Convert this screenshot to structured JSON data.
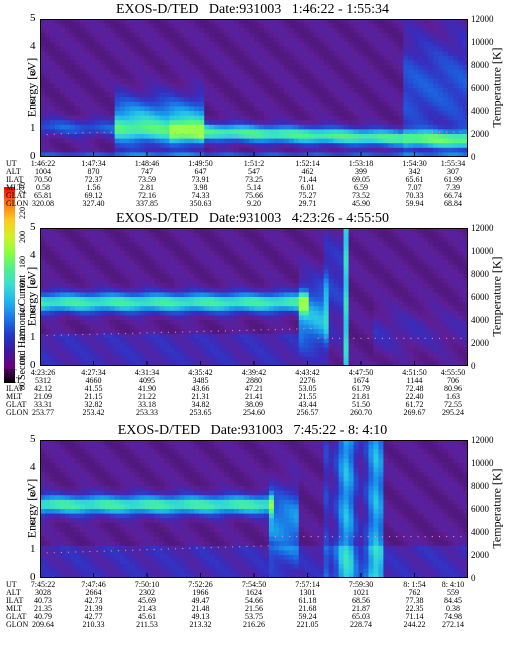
{
  "colorbar": {
    "label": "Second Harmonic Current",
    "ticks": [
      "80",
      "100",
      "120",
      "140",
      "160",
      "180",
      "200",
      "220",
      "240"
    ],
    "colors": [
      "#000000",
      "#6a0080",
      "#3c1a9e",
      "#1f3cc8",
      "#1e78e6",
      "#20b4f0",
      "#3cdcd2",
      "#50f08c",
      "#8cff3c",
      "#d2f02a",
      "#ffc81e",
      "#ff7814",
      "#ff0000"
    ]
  },
  "row_labels": [
    "UT",
    "ALT",
    "ILAT",
    "MLT",
    "GLAT",
    "GLON"
  ],
  "chart_data": [
    {
      "type": "heatmap",
      "title": "EXOS-D/TED   Date:931003   1:46:22 - 1:55:34",
      "ylabel": "Energy [eV]",
      "y2label": "Temperature [K]",
      "ylim": [
        0,
        5
      ],
      "y2lim": [
        0,
        12000
      ],
      "yticks": [
        "0",
        "1",
        "2",
        "3",
        "4",
        "5"
      ],
      "y2ticks": [
        "0",
        "2000",
        "4000",
        "6000",
        "8000",
        "10000",
        "12000"
      ],
      "columns": [
        [
          "1:46:22",
          "1004",
          "70.50",
          "0.58",
          "65.81",
          "320.08"
        ],
        [
          "1:47:34",
          "870",
          "72.37",
          "1.56",
          "69.12",
          "327.40"
        ],
        [
          "1:48:46",
          "747",
          "73.59",
          "2.81",
          "72.16",
          "337.85"
        ],
        [
          "1:49:50",
          "647",
          "73.91",
          "3.98",
          "74.33",
          "350.63"
        ],
        [
          "1:51:2",
          "547",
          "73.25",
          "5.14",
          "75.66",
          "9.20"
        ],
        [
          "1:52:14",
          "462",
          "71.44",
          "6.01",
          "75.27",
          "29.71"
        ],
        [
          "1:53:18",
          "399",
          "69.05",
          "6.59",
          "73.52",
          "45.90"
        ],
        [
          "1:54:30",
          "342",
          "65.61",
          "7.07",
          "70.33",
          "59.94"
        ],
        [
          "1:55:34",
          "307",
          "61.99",
          "7.39",
          "66.74",
          "68.84"
        ]
      ]
    },
    {
      "type": "heatmap",
      "title": "EXOS-D/TED   Date:931003   4:23:26 - 4:55:50",
      "ylabel": "Energy [eV]",
      "y2label": "Temperature [K]",
      "ylim": [
        0,
        5
      ],
      "y2lim": [
        0,
        12000
      ],
      "yticks": [
        "0",
        "1",
        "2",
        "3",
        "4",
        "5"
      ],
      "y2ticks": [
        "0",
        "2000",
        "4000",
        "6000",
        "8000",
        "10000",
        "12000"
      ],
      "columns": [
        [
          "4:23:26",
          "5312",
          "42.12",
          "21.09",
          "33.31",
          "253.77"
        ],
        [
          "4:27:34",
          "4660",
          "41.55",
          "21.15",
          "32.82",
          "253.42"
        ],
        [
          "4:31:34",
          "4095",
          "41.90",
          "21.22",
          "33.18",
          "253.33"
        ],
        [
          "4:35:42",
          "3485",
          "43.66",
          "21.31",
          "34.82",
          "253.65"
        ],
        [
          "4:39:42",
          "2880",
          "47.21",
          "21.41",
          "38.09",
          "254.60"
        ],
        [
          "4:43:42",
          "2276",
          "53.05",
          "21.55",
          "43.44",
          "256.57"
        ],
        [
          "4:47:50",
          "1674",
          "61.79",
          "21.81",
          "51.50",
          "260.70"
        ],
        [
          "4:51:50",
          "1144",
          "72.48",
          "22.40",
          "61.72",
          "269.67"
        ],
        [
          "4:55:50",
          "706",
          "80.96",
          "1.63",
          "72.55",
          "295.24"
        ]
      ]
    },
    {
      "type": "heatmap",
      "title": "EXOS-D/TED   Date:931003   7:45:22 - 8: 4:10",
      "ylabel": "Energy [eV]",
      "y2label": "Temperature [K]",
      "ylim": [
        0,
        5
      ],
      "y2lim": [
        0,
        12000
      ],
      "yticks": [
        "0",
        "1",
        "2",
        "3",
        "4",
        "5"
      ],
      "y2ticks": [
        "0",
        "2000",
        "4000",
        "6000",
        "8000",
        "10000",
        "12000"
      ],
      "columns": [
        [
          "7:45:22",
          "3028",
          "40.73",
          "21.35",
          "40.79",
          "209.64"
        ],
        [
          "7:47:46",
          "2664",
          "42.73",
          "21.39",
          "42.77",
          "210.33"
        ],
        [
          "7:50:10",
          "2302",
          "45.69",
          "21.43",
          "45.61",
          "211.53"
        ],
        [
          "7:52:26",
          "1966",
          "49.47",
          "21.48",
          "49.13",
          "213.32"
        ],
        [
          "7:54:50",
          "1624",
          "54.66",
          "21.56",
          "53.75",
          "216.26"
        ],
        [
          "7:57:14",
          "1301",
          "61.18",
          "21.68",
          "59.24",
          "221.05"
        ],
        [
          "7:59:30",
          "1021",
          "68.56",
          "21.87",
          "65.03",
          "228.74"
        ],
        [
          "8: 1:54",
          "762",
          "77.38",
          "22.35",
          "71.14",
          "244.22"
        ],
        [
          "8: 4:10",
          "559",
          "84.45",
          "0.38",
          "74.98",
          "272.14"
        ]
      ]
    }
  ]
}
